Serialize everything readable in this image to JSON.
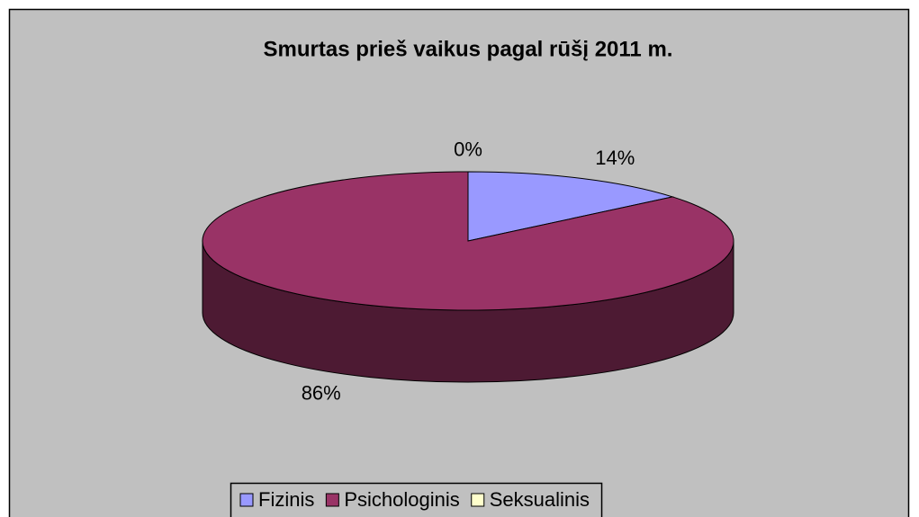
{
  "chart_data": {
    "type": "pie",
    "title": "Smurtas prieš vaikus pagal rūšį 2011 m.",
    "categories": [
      "Fizinis",
      "Psichologinis",
      "Seksualinis"
    ],
    "values": [
      14,
      86,
      0
    ],
    "value_labels": [
      "14%",
      "86%",
      "0%"
    ],
    "colors": [
      "#9999ff",
      "#993366",
      "#ffffcc"
    ],
    "legend": "bottom"
  }
}
